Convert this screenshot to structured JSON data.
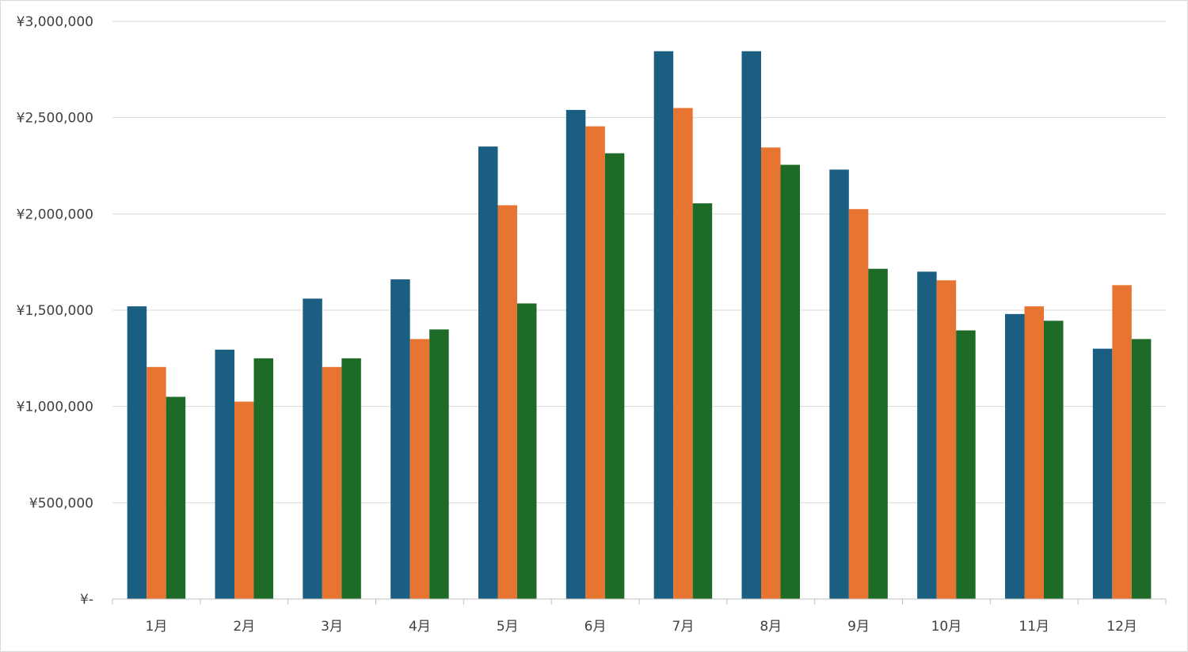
{
  "chart_data": {
    "type": "bar",
    "categories": [
      "1月",
      "2月",
      "3月",
      "4月",
      "5月",
      "6月",
      "7月",
      "8月",
      "9月",
      "10月",
      "11月",
      "12月"
    ],
    "series": [
      {
        "color": "#1a5f82",
        "values": [
          1520000,
          1295000,
          1560000,
          1660000,
          2350000,
          2540000,
          2845000,
          2845000,
          2230000,
          1700000,
          1480000,
          1300000
        ]
      },
      {
        "color": "#e87431",
        "values": [
          1205000,
          1025000,
          1205000,
          1350000,
          2045000,
          2455000,
          2550000,
          2345000,
          2025000,
          1655000,
          1520000,
          1630000
        ]
      },
      {
        "color": "#1d6b27",
        "values": [
          1050000,
          1250000,
          1250000,
          1400000,
          1535000,
          2315000,
          2055000,
          2255000,
          1715000,
          1395000,
          1445000,
          1350000
        ]
      }
    ],
    "ylim": [
      0,
      3000000
    ],
    "y_ticks": [
      0,
      500000,
      1000000,
      1500000,
      2000000,
      2500000,
      3000000
    ],
    "y_tick_labels": [
      "¥-",
      "¥500,000",
      "¥1,000,000",
      "¥1,500,000",
      "¥2,000,000",
      "¥2,500,000",
      "¥3,000,000"
    ],
    "grid": true,
    "legend": "none"
  }
}
